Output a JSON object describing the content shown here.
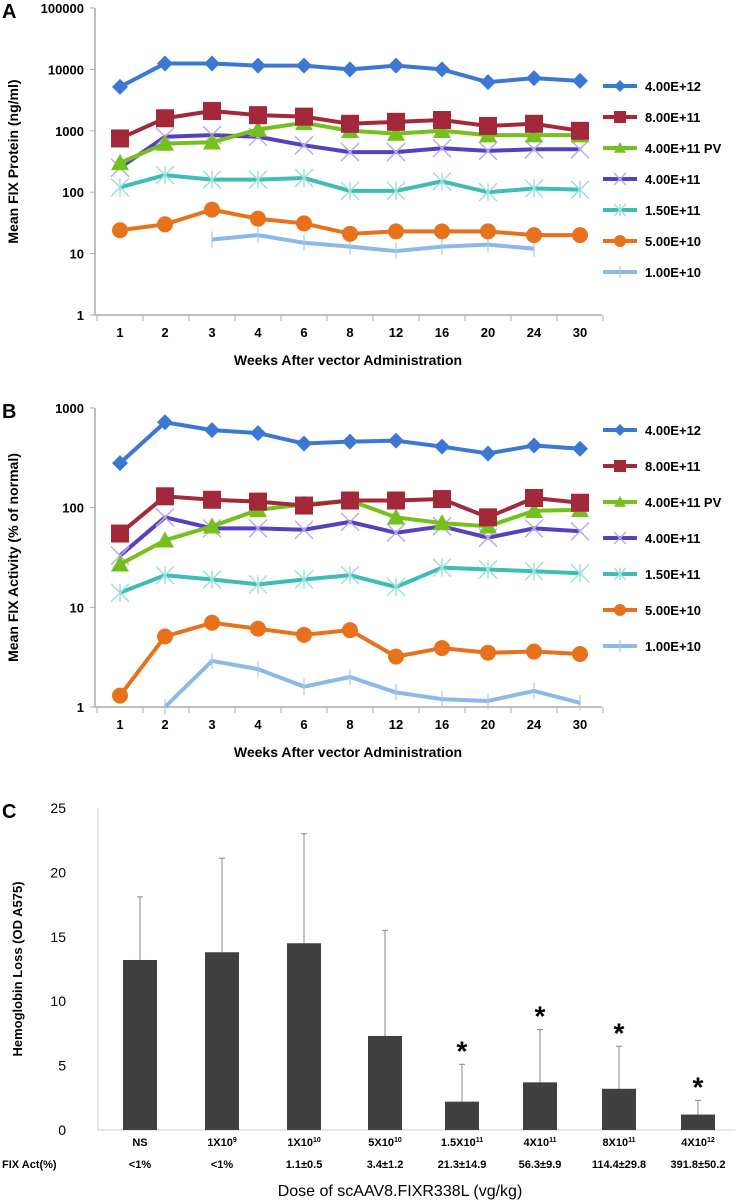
{
  "chart_data": [
    {
      "panel": "A",
      "type": "line",
      "ylabel": "Mean FIX Protein (ng/ml)",
      "xlabel": "Weeks After vector Administration",
      "yscale": "log",
      "ylim": [
        1,
        100000
      ],
      "yticks": [
        "1",
        "10",
        "100",
        "1000",
        "10000",
        "100000"
      ],
      "categories": [
        "1",
        "2",
        "3",
        "4",
        "6",
        "8",
        "12",
        "16",
        "20",
        "24",
        "30"
      ],
      "legend": "right",
      "series": [
        {
          "name": "4.00E+12",
          "color": "#3a78d4",
          "marker": "diamond",
          "values": [
            5200,
            12500,
            12500,
            11500,
            11500,
            10000,
            11500,
            10000,
            6200,
            7200,
            6500
          ]
        },
        {
          "name": "8.00E+11",
          "color": "#a3283a",
          "marker": "square",
          "values": [
            750,
            1600,
            2100,
            1800,
            1700,
            1300,
            1400,
            1500,
            1200,
            1300,
            1000
          ]
        },
        {
          "name": "4.00E+11 PV",
          "color": "#74c01c",
          "marker": "triangle",
          "values": [
            300,
            620,
            650,
            1050,
            1350,
            1000,
            900,
            1000,
            850,
            850,
            850
          ]
        },
        {
          "name": "4.00E+11",
          "color": "#5a3ec2",
          "marker": "x",
          "values": [
            250,
            800,
            850,
            800,
            580,
            450,
            450,
            520,
            470,
            500,
            500
          ]
        },
        {
          "name": "1.50E+11",
          "color": "#3dbdb6",
          "marker": "asterisk",
          "values": [
            120,
            190,
            160,
            160,
            170,
            105,
            105,
            150,
            100,
            115,
            110
          ]
        },
        {
          "name": "5.00E+10",
          "color": "#e8721c",
          "marker": "circle",
          "values": [
            24,
            30,
            52,
            37,
            31,
            21,
            23,
            23,
            23,
            20,
            20
          ]
        },
        {
          "name": "1.00E+10",
          "color": "#8cb8ea",
          "marker": "plus",
          "values": [
            null,
            null,
            17,
            20,
            15,
            13,
            11,
            13,
            14,
            12,
            null
          ]
        }
      ]
    },
    {
      "panel": "B",
      "type": "line",
      "ylabel": "Mean FIX Activity (% of normal)",
      "xlabel": "Weeks After vector Administration",
      "yscale": "log",
      "ylim": [
        1,
        1000
      ],
      "yticks": [
        "1",
        "10",
        "100",
        "1000"
      ],
      "categories": [
        "1",
        "2",
        "3",
        "4",
        "6",
        "8",
        "12",
        "16",
        "20",
        "24",
        "30"
      ],
      "legend": "right",
      "series": [
        {
          "name": "4.00E+12",
          "color": "#3a78d4",
          "marker": "diamond",
          "values": [
            280,
            720,
            600,
            560,
            440,
            460,
            470,
            410,
            350,
            420,
            390
          ]
        },
        {
          "name": "8.00E+11",
          "color": "#a3283a",
          "marker": "square",
          "values": [
            55,
            130,
            120,
            115,
            105,
            118,
            118,
            122,
            80,
            125,
            112
          ]
        },
        {
          "name": "4.00E+11 PV",
          "color": "#74c01c",
          "marker": "triangle",
          "values": [
            27,
            47,
            65,
            95,
            108,
            118,
            80,
            70,
            65,
            93,
            95
          ]
        },
        {
          "name": "4.00E+11",
          "color": "#5a3ec2",
          "marker": "x",
          "values": [
            33,
            80,
            62,
            62,
            60,
            72,
            56,
            65,
            50,
            62,
            58
          ]
        },
        {
          "name": "1.50E+11",
          "color": "#3dbdb6",
          "marker": "asterisk",
          "values": [
            14,
            21,
            19,
            17,
            19,
            21,
            16,
            25,
            24,
            23,
            22
          ]
        },
        {
          "name": "5.00E+10",
          "color": "#e8721c",
          "marker": "circle",
          "values": [
            1.3,
            5.1,
            7,
            6.1,
            5.3,
            5.9,
            3.2,
            3.9,
            3.5,
            3.6,
            3.4
          ]
        },
        {
          "name": "1.00E+10",
          "color": "#8cb8ea",
          "marker": "plus",
          "values": [
            null,
            1.0,
            2.9,
            2.4,
            1.6,
            2.0,
            1.4,
            1.2,
            1.15,
            1.45,
            1.1
          ]
        }
      ]
    },
    {
      "panel": "C",
      "type": "bar",
      "ylabel": "Hemoglobin Loss (OD A575)",
      "xlabel": "Dose of scAAV8.FIXR338L (vg/kg)",
      "ylim": [
        0,
        25
      ],
      "yticks": [
        "0",
        "5",
        "10",
        "15",
        "20",
        "25"
      ],
      "color": "#404040",
      "categories": [
        {
          "base": "NS",
          "exp": ""
        },
        {
          "base": "1X10",
          "exp": "9"
        },
        {
          "base": "1X10",
          "exp": "10"
        },
        {
          "base": "5X10",
          "exp": "10"
        },
        {
          "base": "1.5X10",
          "exp": "11"
        },
        {
          "base": "4X10",
          "exp": "11"
        },
        {
          "base": "8X10",
          "exp": "11"
        },
        {
          "base": "4X10",
          "exp": "12"
        }
      ],
      "values": [
        13.2,
        13.8,
        14.5,
        7.3,
        2.2,
        3.7,
        3.2,
        1.2
      ],
      "error_upper": [
        18.1,
        21.1,
        23.0,
        15.5,
        5.1,
        7.8,
        6.5,
        2.3
      ],
      "significant": [
        false,
        false,
        false,
        false,
        true,
        true,
        true,
        true
      ],
      "significance_mark": "*",
      "fix_act_label": "FIX Act(%)",
      "fix_act": [
        "<1%",
        "<1%",
        "1.1±0.5",
        "3.4±1.2",
        "21.3±14.9",
        "56.3±9.9",
        "114.4±29.8",
        "391.8±50.2"
      ]
    }
  ]
}
